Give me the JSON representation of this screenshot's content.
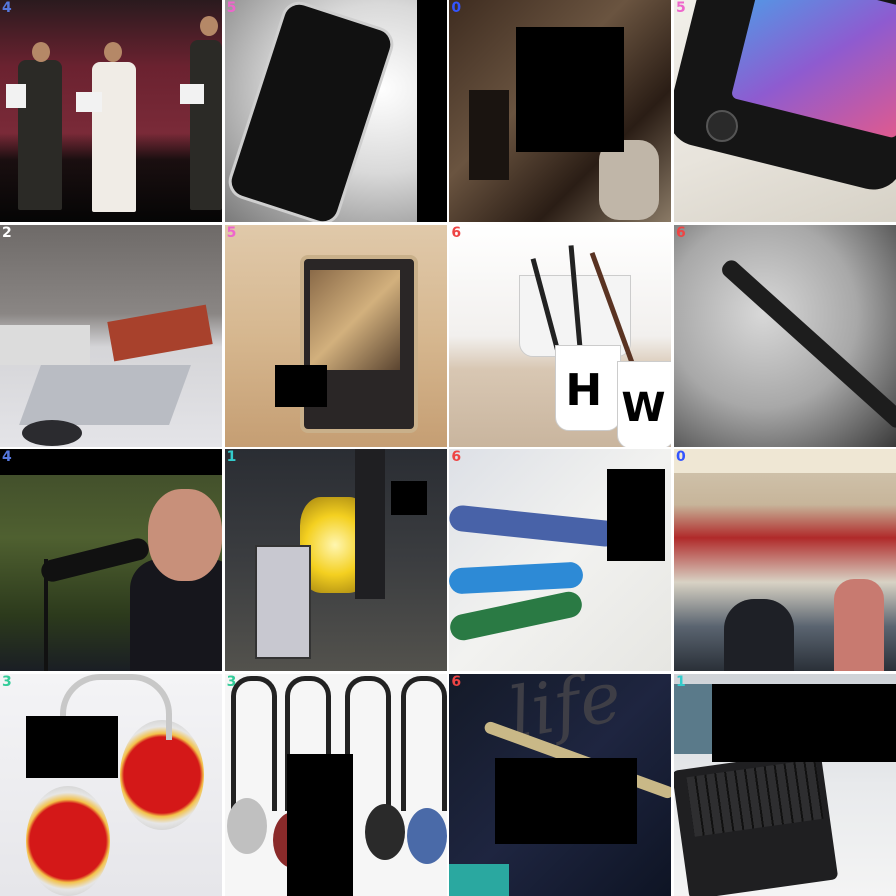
{
  "grid": {
    "tiles": [
      {
        "label": "4",
        "label_color": "#5577dd"
      },
      {
        "label": "5",
        "label_color": "#ee66cc"
      },
      {
        "label": "0",
        "label_color": "#3355ff"
      },
      {
        "label": "5",
        "label_color": "#ee66cc"
      },
      {
        "label": "2",
        "label_color": "#ffffff"
      },
      {
        "label": "5",
        "label_color": "#ee66cc"
      },
      {
        "label": "6",
        "label_color": "#ee4444"
      },
      {
        "label": "6",
        "label_color": "#ee4444"
      },
      {
        "label": "4",
        "label_color": "#5577dd"
      },
      {
        "label": "1",
        "label_color": "#33cccc"
      },
      {
        "label": "6",
        "label_color": "#ee4444"
      },
      {
        "label": "0",
        "label_color": "#3355ff"
      },
      {
        "label": "3",
        "label_color": "#33cc99"
      },
      {
        "label": "3",
        "label_color": "#33cc99"
      },
      {
        "label": "6",
        "label_color": "#ee4444"
      },
      {
        "label": "1",
        "label_color": "#33cccc"
      }
    ]
  },
  "printed_text": {
    "mug_letters": [
      "H",
      "W"
    ],
    "notebook_text": "life"
  }
}
